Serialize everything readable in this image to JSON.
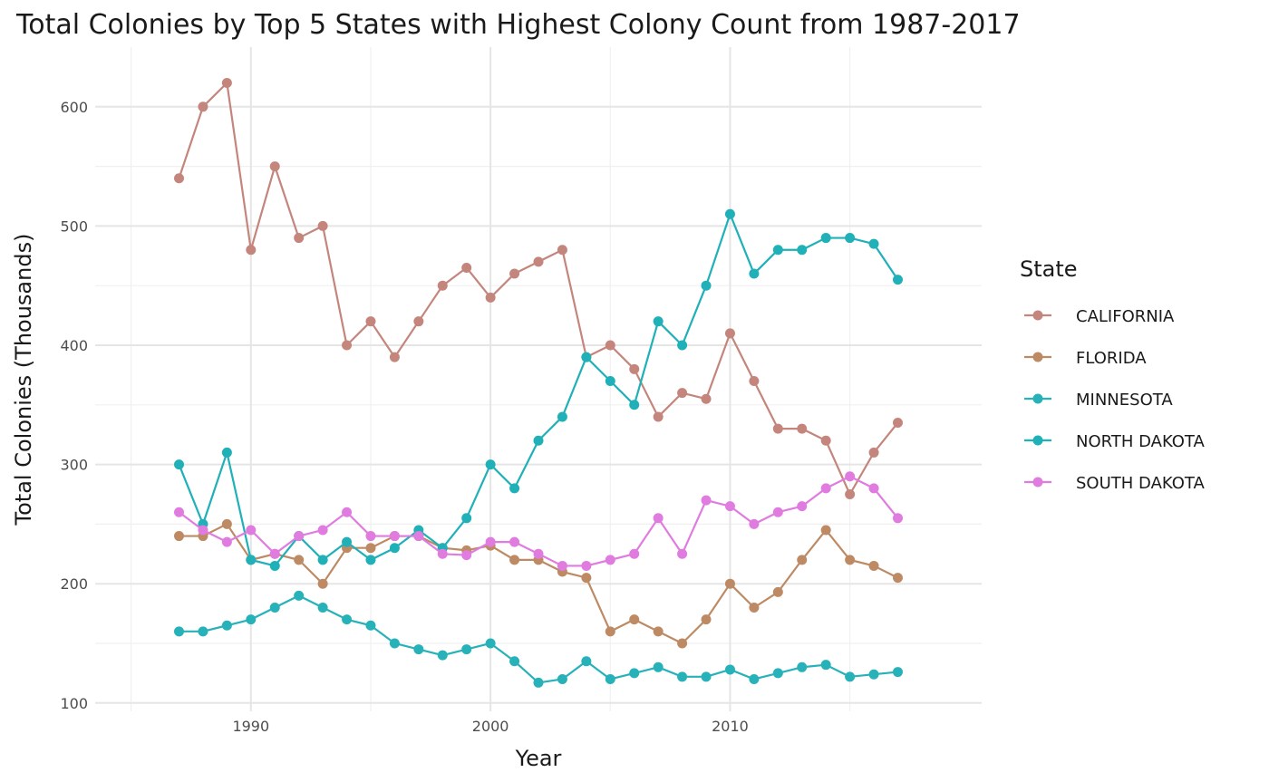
{
  "chart_data": {
    "type": "line",
    "title": "Total Colonies by Top 5 States with Highest Colony Count from 1987-2017",
    "xlabel": "Year",
    "ylabel": "Total Colonies (Thousands)",
    "xlim": [
      1983.5,
      2020.5
    ],
    "ylim": [
      93,
      650
    ],
    "x_ticks": [
      1990,
      2000,
      2010
    ],
    "y_ticks": [
      100,
      200,
      300,
      400,
      500,
      600
    ],
    "grid": true,
    "legend": {
      "title": "State",
      "position": "right"
    },
    "x": [
      1987,
      1988,
      1989,
      1990,
      1991,
      1992,
      1993,
      1994,
      1995,
      1996,
      1997,
      1998,
      1999,
      2000,
      2001,
      2002,
      2003,
      2004,
      2005,
      2006,
      2007,
      2008,
      2009,
      2010,
      2011,
      2012,
      2013,
      2014,
      2015,
      2016,
      2017
    ],
    "series": [
      {
        "name": "CALIFORNIA",
        "color": "#C4857D",
        "values": [
          540,
          600,
          620,
          480,
          550,
          490,
          500,
          400,
          420,
          390,
          420,
          450,
          465,
          440,
          460,
          470,
          480,
          390,
          400,
          380,
          340,
          360,
          355,
          410,
          370,
          330,
          330,
          320,
          275,
          310,
          335
        ]
      },
      {
        "name": "FLORIDA",
        "color": "#BE8A64",
        "values": [
          240,
          240,
          250,
          220,
          225,
          220,
          200,
          230,
          230,
          240,
          240,
          230,
          228,
          232,
          220,
          220,
          210,
          205,
          160,
          170,
          160,
          150,
          170,
          200,
          180,
          193,
          220,
          245,
          220,
          215,
          205
        ]
      },
      {
        "name": "MINNESOTA",
        "color": "#26B2B8",
        "values": [
          160,
          160,
          165,
          170,
          180,
          190,
          180,
          170,
          165,
          150,
          145,
          140,
          145,
          150,
          135,
          117,
          120,
          135,
          120,
          125,
          130,
          122,
          122,
          128,
          120,
          125,
          130,
          132,
          122,
          124,
          126
        ]
      },
      {
        "name": "NORTH DAKOTA",
        "color": "#1FB0B8",
        "values": [
          300,
          250,
          310,
          220,
          215,
          240,
          220,
          235,
          220,
          230,
          245,
          230,
          255,
          300,
          280,
          320,
          340,
          390,
          370,
          350,
          420,
          400,
          450,
          510,
          460,
          480,
          480,
          490,
          490,
          485,
          455
        ]
      },
      {
        "name": "SOUTH DAKOTA",
        "color": "#E07BE0",
        "values": [
          260,
          245,
          235,
          245,
          225,
          240,
          245,
          260,
          240,
          240,
          240,
          225,
          224,
          235,
          235,
          225,
          215,
          215,
          220,
          225,
          255,
          225,
          270,
          265,
          250,
          260,
          265,
          280,
          290,
          280,
          255
        ]
      }
    ]
  }
}
